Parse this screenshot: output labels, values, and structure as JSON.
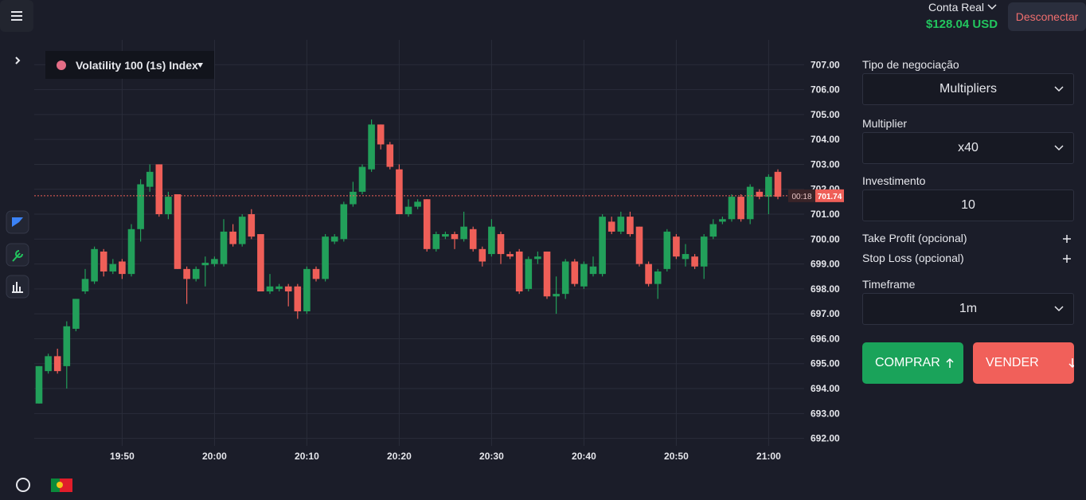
{
  "header": {
    "account": "Conta Real",
    "balance": "$128.04 USD",
    "disconnect": "Desconectar"
  },
  "chart_data": {
    "type": "candlestick",
    "symbol": "Volatility 100 (1s) Index",
    "x": [
      "19:41",
      "19:42",
      "19:43",
      "19:44",
      "19:45",
      "19:46",
      "19:47",
      "19:48",
      "19:49",
      "19:50",
      "19:51",
      "19:52",
      "19:53",
      "19:54",
      "19:55",
      "19:56",
      "19:57",
      "19:58",
      "19:59",
      "20:00",
      "20:01",
      "20:02",
      "20:03",
      "20:04",
      "20:05",
      "20:06",
      "20:07",
      "20:08",
      "20:09",
      "20:10",
      "20:11",
      "20:12",
      "20:13",
      "20:14",
      "20:15",
      "20:16",
      "20:17",
      "20:18",
      "20:19",
      "20:20",
      "20:21",
      "20:22",
      "20:23",
      "20:24",
      "20:25",
      "20:26",
      "20:27",
      "20:28",
      "20:29",
      "20:30",
      "20:31",
      "20:32",
      "20:33",
      "20:34",
      "20:35",
      "20:36",
      "20:37",
      "20:38",
      "20:39",
      "20:40",
      "20:41",
      "20:42",
      "20:43",
      "20:44",
      "20:45",
      "20:46",
      "20:47",
      "20:48",
      "20:49",
      "20:50",
      "20:51",
      "20:52",
      "20:53",
      "20:54",
      "20:55",
      "20:56",
      "20:57",
      "20:58",
      "20:59",
      "21:00",
      "21:01"
    ],
    "open": [
      693.4,
      694.7,
      695.3,
      694.9,
      696.4,
      697.9,
      698.3,
      699.5,
      698.7,
      699.1,
      698.6,
      700.4,
      702.1,
      703.0,
      701.0,
      701.8,
      698.8,
      698.4,
      698.95,
      699.0,
      699.0,
      700.3,
      699.8,
      701.0,
      700.2,
      697.9,
      698.0,
      698.1,
      698.1,
      697.1,
      698.8,
      698.4,
      699.9,
      700.0,
      701.4,
      701.9,
      702.8,
      704.6,
      703.8,
      702.8,
      701.0,
      701.3,
      701.6,
      699.6,
      700.1,
      700.2,
      700.0,
      700.4,
      699.6,
      699.4,
      700.2,
      699.4,
      699.5,
      698.0,
      699.2,
      699.5,
      697.7,
      697.8,
      699.1,
      698.1,
      698.6,
      698.6,
      700.7,
      700.3,
      700.9,
      700.5,
      699.0,
      698.2,
      698.8,
      700.1,
      699.2,
      699.3,
      698.9,
      700.1,
      700.7,
      700.8,
      701.7,
      700.8,
      701.9,
      701.7,
      702.7
    ],
    "high": [
      694.9,
      695.4,
      695.6,
      696.7,
      697.6,
      698.8,
      699.7,
      699.6,
      699.2,
      699.2,
      700.6,
      702.4,
      703.0,
      703.0,
      701.9,
      701.8,
      698.9,
      698.9,
      699.3,
      699.3,
      700.8,
      700.6,
      701.0,
      701.2,
      700.2,
      698.6,
      698.2,
      698.2,
      698.2,
      698.9,
      698.9,
      700.2,
      700.2,
      701.5,
      702.3,
      703.0,
      704.8,
      704.6,
      703.9,
      703.0,
      701.6,
      701.6,
      701.6,
      700.3,
      700.3,
      700.3,
      701.1,
      700.5,
      699.7,
      700.8,
      700.3,
      699.5,
      699.6,
      699.3,
      699.5,
      699.5,
      698.5,
      699.2,
      699.2,
      699.1,
      699.3,
      701.0,
      700.9,
      701.1,
      701.1,
      700.5,
      699.1,
      698.8,
      700.4,
      700.2,
      699.8,
      699.4,
      700.2,
      700.8,
      700.9,
      701.8,
      701.8,
      702.2,
      702.0,
      702.6,
      702.8
    ],
    "low": [
      693.4,
      694.6,
      694.6,
      694.0,
      696.3,
      697.8,
      698.2,
      698.5,
      698.6,
      698.4,
      698.5,
      699.9,
      701.9,
      700.9,
      700.8,
      698.8,
      697.4,
      698.3,
      698.1,
      698.9,
      698.9,
      699.7,
      699.7,
      700.0,
      697.9,
      697.8,
      697.9,
      697.3,
      696.8,
      697.0,
      698.3,
      698.3,
      699.8,
      699.9,
      701.3,
      701.8,
      702.7,
      703.6,
      702.8,
      701.0,
      700.9,
      701.2,
      699.5,
      699.5,
      700.0,
      699.6,
      699.9,
      699.5,
      698.9,
      699.3,
      699.0,
      699.2,
      697.8,
      697.9,
      699.0,
      697.6,
      697.0,
      697.6,
      698.1,
      698.0,
      698.5,
      698.5,
      700.2,
      700.2,
      700.1,
      698.9,
      698.1,
      697.6,
      698.7,
      699.2,
      698.9,
      698.8,
      698.4,
      700.0,
      700.6,
      700.7,
      700.7,
      700.6,
      701.6,
      701.0,
      701.6
    ],
    "close": [
      694.9,
      695.3,
      694.7,
      696.5,
      697.6,
      698.4,
      699.6,
      698.7,
      699.0,
      698.6,
      700.4,
      702.2,
      702.7,
      701.0,
      701.7,
      698.8,
      698.4,
      698.8,
      699.05,
      699.2,
      700.3,
      699.8,
      700.9,
      700.1,
      697.9,
      698.1,
      698.1,
      697.9,
      697.1,
      698.8,
      698.4,
      700.1,
      700.1,
      701.4,
      701.9,
      702.9,
      704.6,
      703.8,
      702.9,
      701.0,
      701.3,
      701.5,
      699.6,
      700.2,
      700.2,
      700.0,
      700.5,
      699.6,
      699.1,
      700.5,
      699.4,
      699.3,
      697.9,
      699.2,
      699.3,
      697.7,
      697.8,
      699.1,
      698.2,
      699.0,
      698.9,
      700.9,
      700.3,
      700.9,
      700.2,
      699.0,
      698.2,
      698.7,
      700.3,
      699.3,
      699.4,
      698.9,
      700.1,
      700.6,
      700.8,
      701.7,
      700.8,
      702.1,
      701.7,
      702.5,
      701.7
    ],
    "up_color": "#22a05a",
    "down_color": "#ef5f58",
    "ylim": [
      691.7,
      708
    ],
    "yticks": [
      {
        "value": 692,
        "label": "692.00"
      },
      {
        "value": 693,
        "label": "693.00"
      },
      {
        "value": 694,
        "label": "694.00"
      },
      {
        "value": 695,
        "label": "695.00"
      },
      {
        "value": 696,
        "label": "696.00"
      },
      {
        "value": 697,
        "label": "697.00"
      },
      {
        "value": 698,
        "label": "698.00"
      },
      {
        "value": 699,
        "label": "699.00"
      },
      {
        "value": 700,
        "label": "700.00"
      },
      {
        "value": 701,
        "label": "701.00"
      },
      {
        "value": 702,
        "label": "702.00"
      },
      {
        "value": 703,
        "label": "703.00"
      },
      {
        "value": 704,
        "label": "704.00"
      },
      {
        "value": 705,
        "label": "705.00"
      },
      {
        "value": 706,
        "label": "706.00"
      },
      {
        "value": 707,
        "label": "707.00"
      }
    ],
    "xticks": [
      "19:50",
      "20:00",
      "20:10",
      "20:20",
      "20:30",
      "20:40",
      "20:50",
      "21:00"
    ],
    "grid": true,
    "current_price": 701.74,
    "countdown": "00:18"
  },
  "panel": {
    "trade_type_label": "Tipo de negociação",
    "trade_type": "Multipliers",
    "multiplier_label": "Multiplier",
    "multiplier": "x40",
    "investment_label": "Investimento",
    "investment": "10",
    "take_profit": "Take Profit (opcional)",
    "stop_loss": "Stop Loss (opcional)",
    "timeframe_label": "Timeframe",
    "timeframe": "1m",
    "buy": "COMPRAR",
    "sell": "VENDER"
  }
}
